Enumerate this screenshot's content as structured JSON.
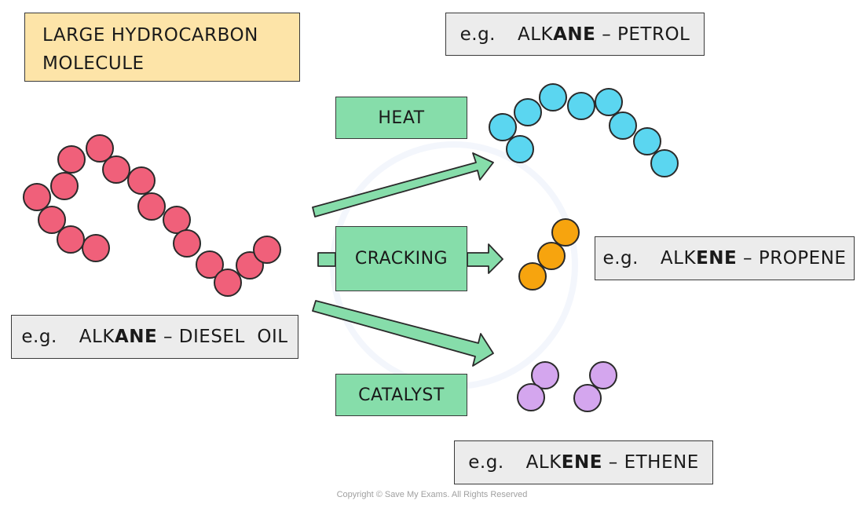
{
  "title_box": {
    "line1": "LARGE  HYDROCARBON",
    "line2": "MOLECULE"
  },
  "conditions": {
    "heat": "HEAT",
    "cracking": "CRACKING",
    "catalyst": "CATALYST"
  },
  "examples": {
    "diesel": {
      "prefix": "e.g.",
      "pre": "ALK",
      "bold": "ANE",
      "post": " – DIESEL  OIL"
    },
    "petrol": {
      "prefix": "e.g.",
      "pre": "ALK",
      "bold": "ANE",
      "post": " – PETROL"
    },
    "propene": {
      "prefix": "e.g.",
      "pre": "ALK",
      "bold": "ENE",
      "post": " – PROPENE"
    },
    "ethene": {
      "prefix": "e.g.",
      "pre": "ALK",
      "bold": "ENE",
      "post": " – ETHENE"
    }
  },
  "colors": {
    "alkane_large": "#f0607a",
    "petrol": "#5bd6f0",
    "propene": "#f7a40e",
    "ethene": "#d4a6ee",
    "arrow": "#86ddaa",
    "outline": "#2a2a2a"
  },
  "molecules": {
    "diesel_atoms": 16,
    "petrol_atoms": 9,
    "propene_atoms": 3,
    "ethene_molecules": 2,
    "ethene_atoms_each": 2
  },
  "copyright": "Copyright © Save My Exams. All Rights Reserved"
}
